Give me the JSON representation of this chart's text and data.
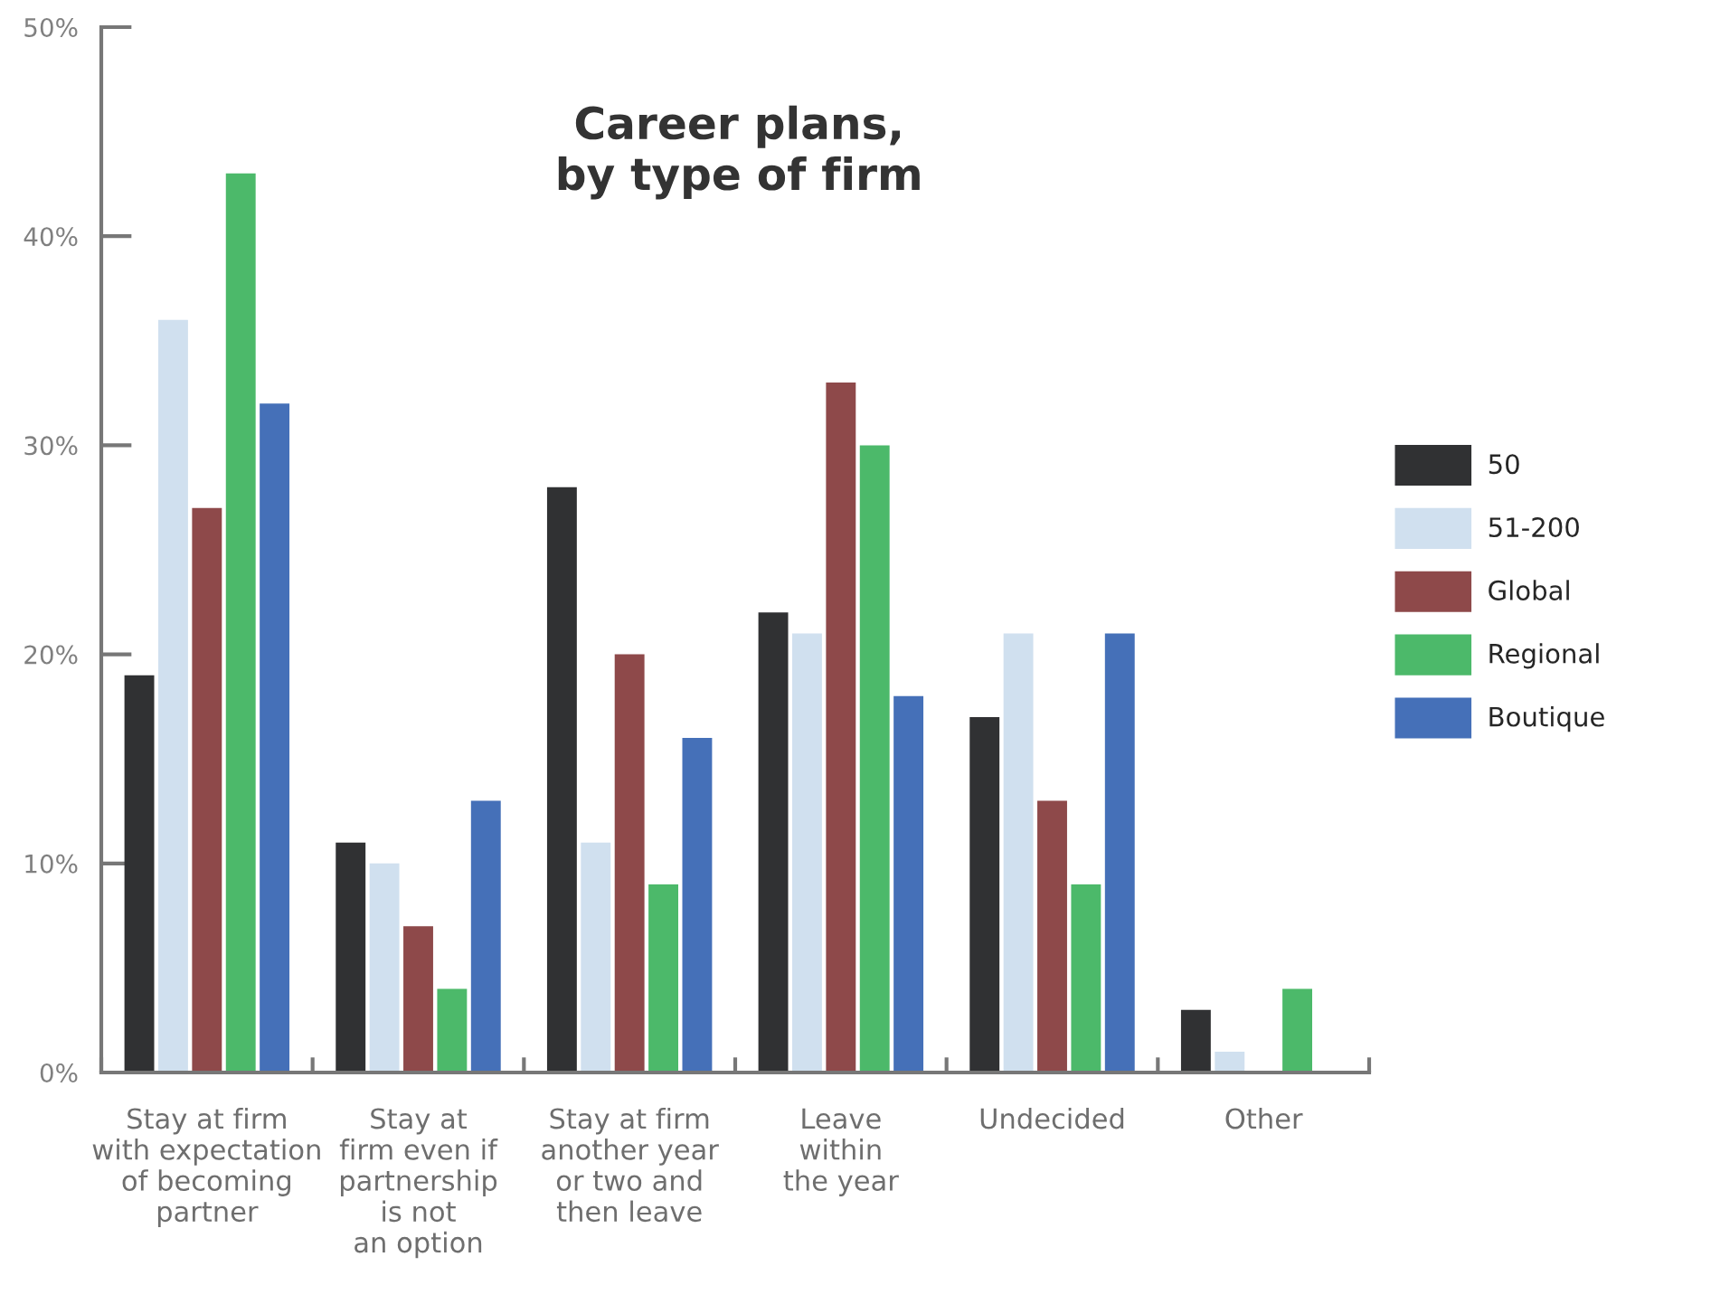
{
  "chart_data": {
    "type": "bar",
    "title": "Career plans,\nby type of firm",
    "categories": [
      "Stay at firm\nwith expectation\nof becoming\npartner",
      "Stay at\nfirm even if\npartnership\nis not\nan option",
      "Stay at firm\nanother year\nor two and\nthen leave",
      "Leave\nwithin\nthe year",
      "Undecided",
      "Other"
    ],
    "series": [
      {
        "name": "50",
        "color": "#303133",
        "values": [
          19,
          11,
          28,
          22,
          17,
          3
        ]
      },
      {
        "name": "51-200",
        "color": "#d0e0ef",
        "values": [
          36,
          10,
          11,
          21,
          21,
          1
        ]
      },
      {
        "name": "Global",
        "color": "#8e494a",
        "values": [
          27,
          7,
          20,
          33,
          13,
          0
        ]
      },
      {
        "name": "Regional",
        "color": "#4cb96a",
        "values": [
          43,
          4,
          9,
          30,
          9,
          4
        ]
      },
      {
        "name": "Boutique",
        "color": "#4570b8",
        "values": [
          32,
          13,
          16,
          18,
          21,
          0
        ]
      }
    ],
    "ylim": [
      0,
      50
    ],
    "yticks": [
      {
        "value": 0,
        "label": "0%"
      },
      {
        "value": 10,
        "label": "10%"
      },
      {
        "value": 20,
        "label": "20%"
      },
      {
        "value": 30,
        "label": "30%"
      },
      {
        "value": 40,
        "label": "40%"
      },
      {
        "value": 50,
        "label": "50%"
      }
    ],
    "legend": "right"
  }
}
